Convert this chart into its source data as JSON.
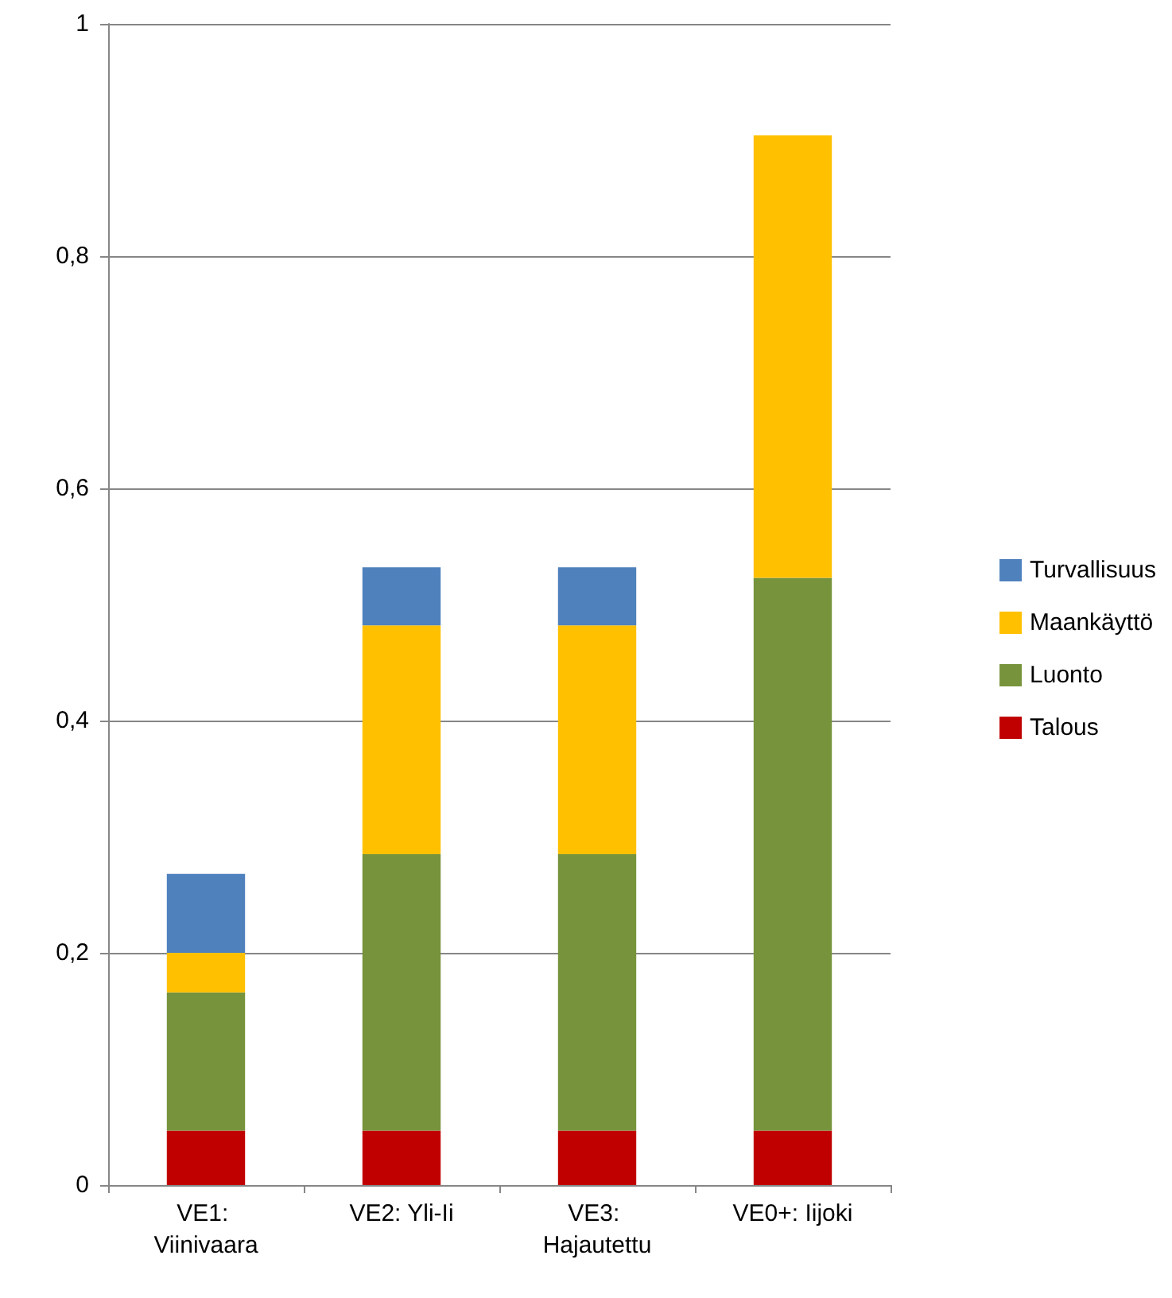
{
  "chart_data": {
    "type": "bar",
    "stacked": true,
    "categories": [
      "VE1: Viinivaara",
      "VE2: Yli-Ii",
      "VE3: Hajautettu",
      "VE0+: Iijoki"
    ],
    "series": [
      {
        "name": "Talous",
        "color": "#c00000",
        "values": [
          0.047,
          0.047,
          0.047,
          0.047
        ]
      },
      {
        "name": "Luonto",
        "color": "#77933c",
        "values": [
          0.119,
          0.238,
          0.238,
          0.476
        ]
      },
      {
        "name": "Maankäyttö",
        "color": "#ffc000",
        "values": [
          0.034,
          0.197,
          0.197,
          0.381
        ]
      },
      {
        "name": "Turvallisuus",
        "color": "#4f81bd",
        "values": [
          0.068,
          0.05,
          0.05,
          null
        ]
      }
    ],
    "ylim": [
      0,
      1
    ],
    "yticks": [
      {
        "value": 0,
        "label": "0"
      },
      {
        "value": 0.2,
        "label": "0,2"
      },
      {
        "value": 0.4,
        "label": "0,4"
      },
      {
        "value": 0.6,
        "label": "0,6"
      },
      {
        "value": 0.8,
        "label": "0,8"
      },
      {
        "value": 1,
        "label": "1"
      }
    ],
    "grid": "y",
    "legend": "right"
  }
}
